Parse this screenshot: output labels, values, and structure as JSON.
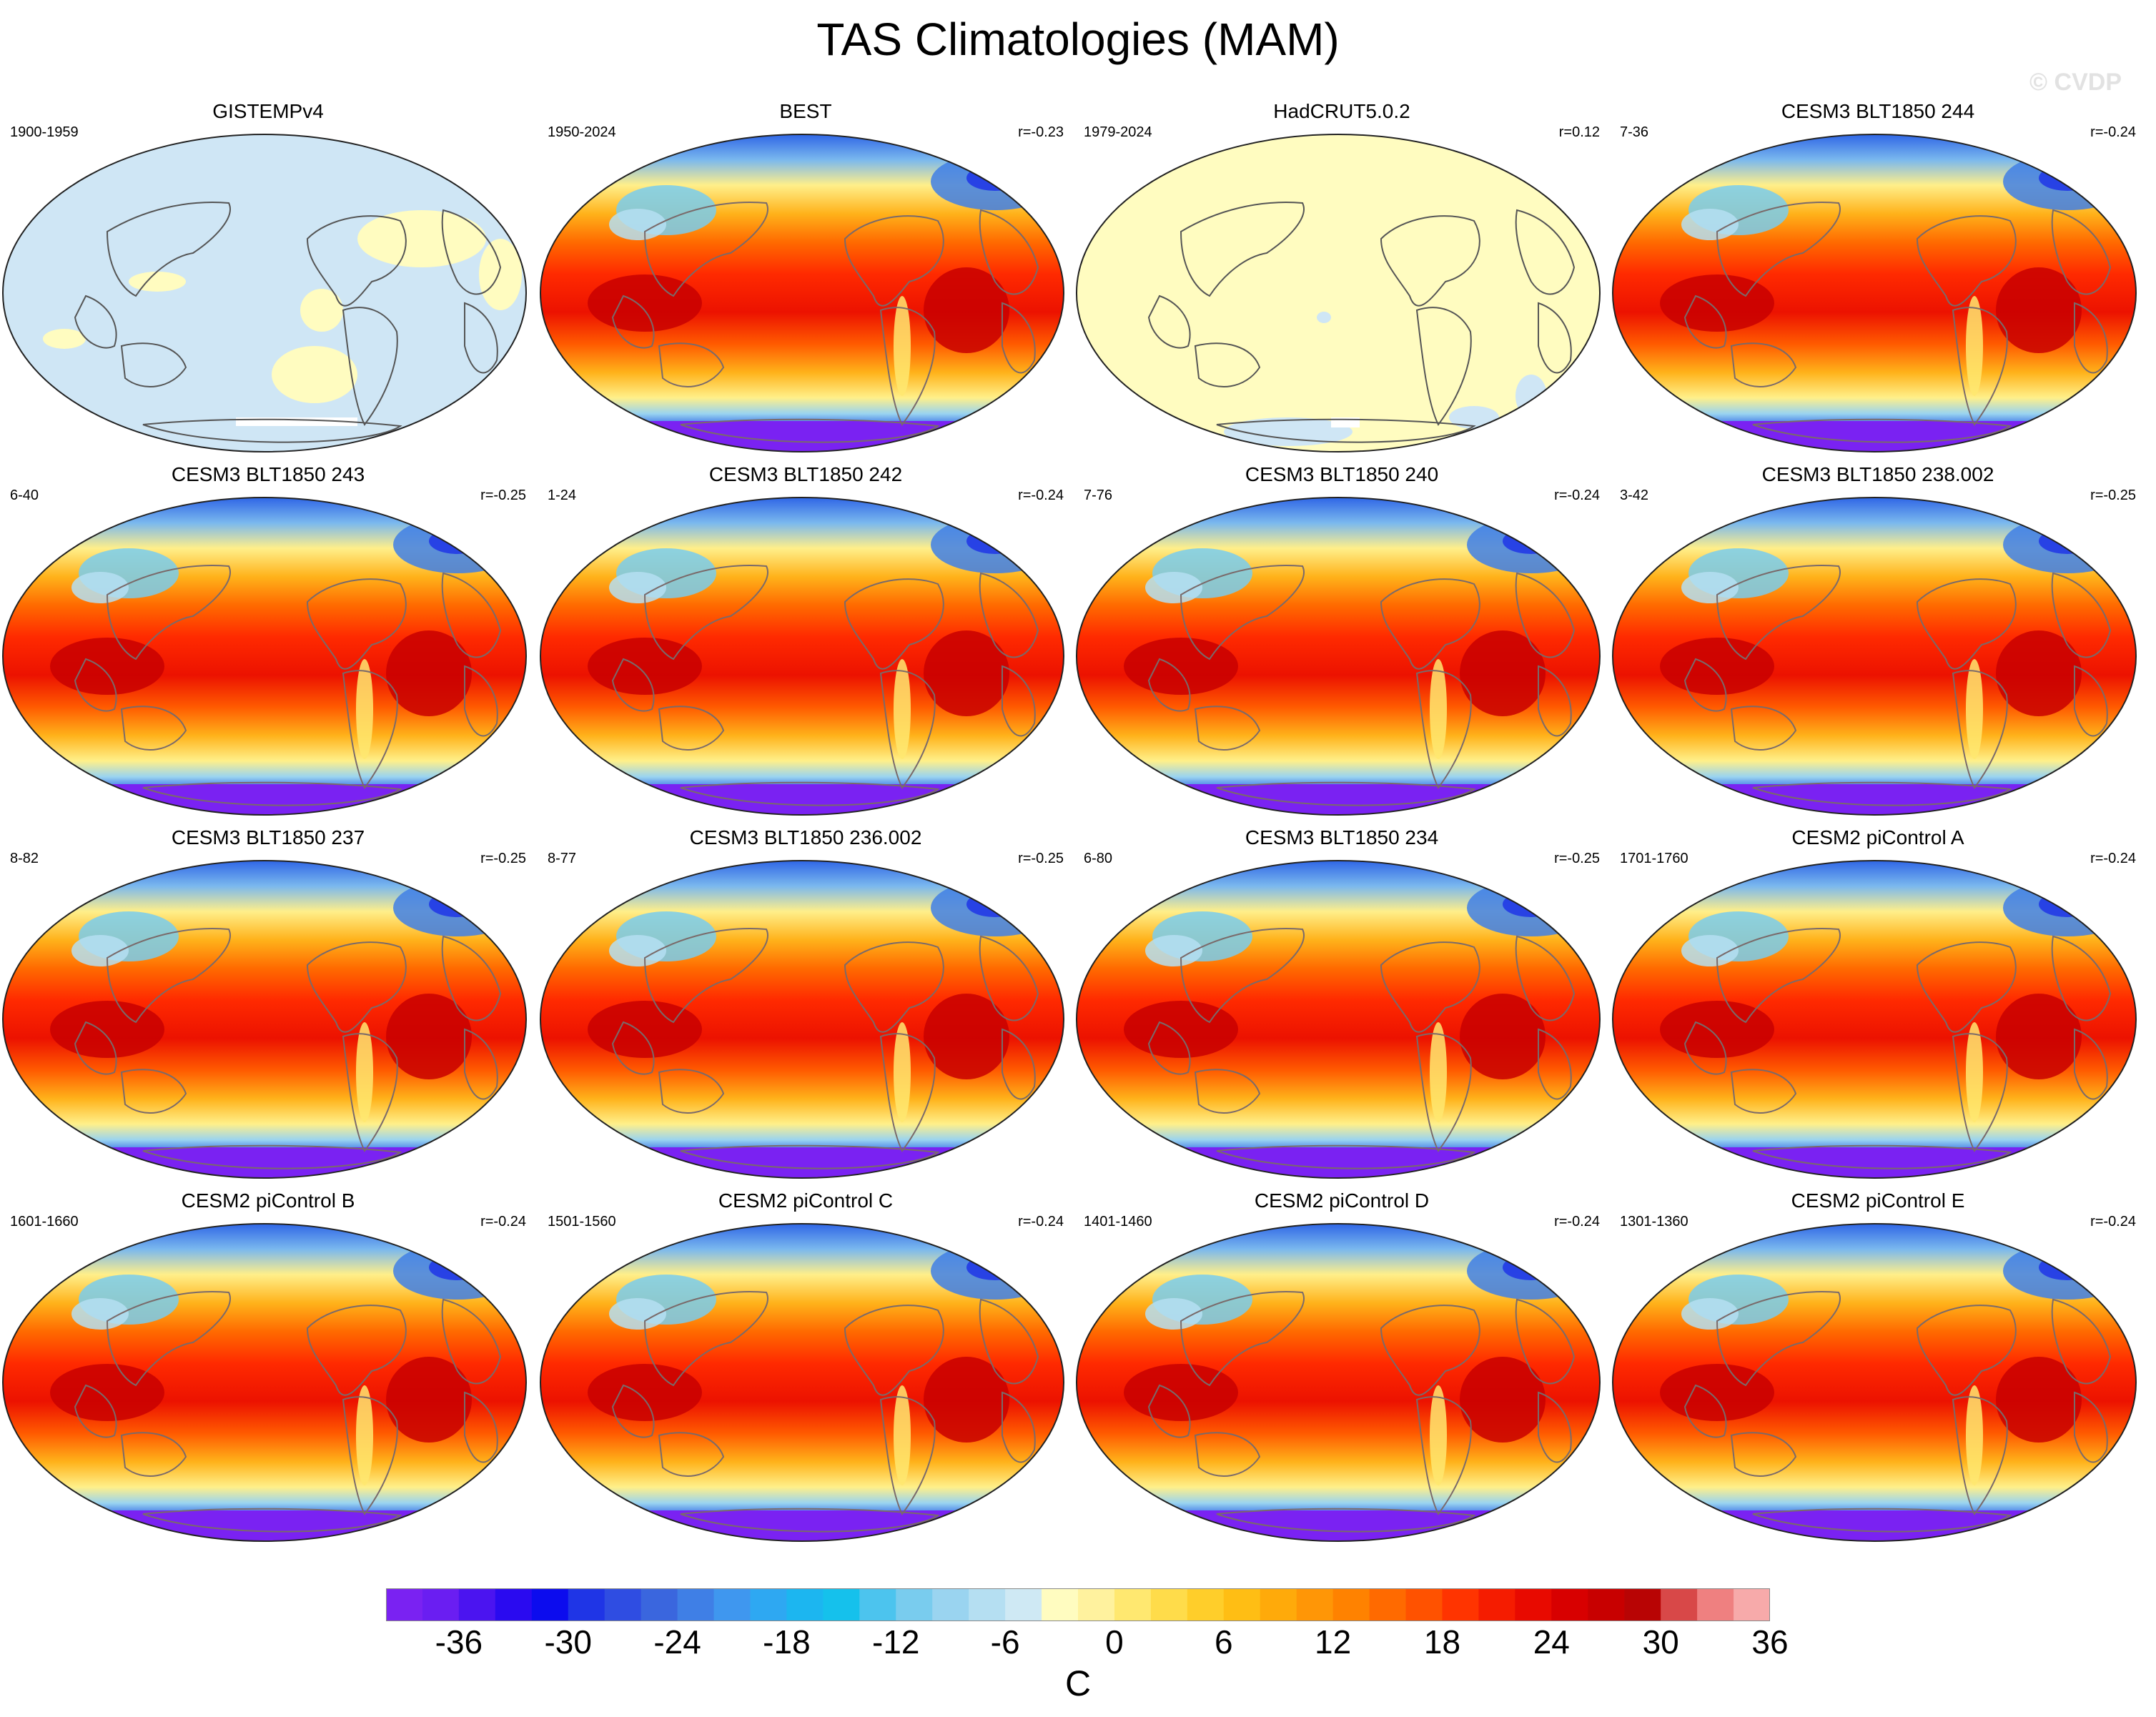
{
  "title": "TAS Climatologies (MAM)",
  "watermark": "© CVDP",
  "panels": [
    {
      "name": "GISTEMPv4",
      "period": "1900-1959",
      "corr": "",
      "style": "light_blue"
    },
    {
      "name": "BEST",
      "period": "1950-2024",
      "corr": "r=-0.23",
      "style": "model"
    },
    {
      "name": "HadCRUT5.0.2",
      "period": "1979-2024",
      "corr": "r=0.12",
      "style": "light_yellow"
    },
    {
      "name": "CESM3 BLT1850 244",
      "period": "7-36",
      "corr": "r=-0.24",
      "style": "model"
    },
    {
      "name": "CESM3 BLT1850 243",
      "period": "6-40",
      "corr": "r=-0.25",
      "style": "model"
    },
    {
      "name": "CESM3 BLT1850 242",
      "period": "1-24",
      "corr": "r=-0.24",
      "style": "model"
    },
    {
      "name": "CESM3 BLT1850 240",
      "period": "7-76",
      "corr": "r=-0.24",
      "style": "model"
    },
    {
      "name": "CESM3 BLT1850 238.002",
      "period": "3-42",
      "corr": "r=-0.25",
      "style": "model"
    },
    {
      "name": "CESM3 BLT1850 237",
      "period": "8-82",
      "corr": "r=-0.25",
      "style": "model"
    },
    {
      "name": "CESM3 BLT1850 236.002",
      "period": "8-77",
      "corr": "r=-0.25",
      "style": "model"
    },
    {
      "name": "CESM3 BLT1850 234",
      "period": "6-80",
      "corr": "r=-0.25",
      "style": "model"
    },
    {
      "name": "CESM2 piControl A",
      "period": "1701-1760",
      "corr": "r=-0.24",
      "style": "model"
    },
    {
      "name": "CESM2 piControl B",
      "period": "1601-1660",
      "corr": "r=-0.24",
      "style": "model"
    },
    {
      "name": "CESM2 piControl C",
      "period": "1501-1560",
      "corr": "r=-0.24",
      "style": "model"
    },
    {
      "name": "CESM2 piControl D",
      "period": "1401-1460",
      "corr": "r=-0.24",
      "style": "model"
    },
    {
      "name": "CESM2 piControl E",
      "period": "1301-1360",
      "corr": "r=-0.24",
      "style": "model"
    }
  ],
  "colorbar": {
    "units": "C",
    "tick_labels": [
      "-36",
      "-30",
      "-24",
      "-18",
      "-12",
      "-6",
      "0",
      "6",
      "12",
      "18",
      "24",
      "30",
      "36"
    ],
    "colors": [
      "#7a22f2",
      "#6a1ef2",
      "#4b14f0",
      "#2a0af0",
      "#0c0cee",
      "#1f35e6",
      "#2f4de2",
      "#3a66de",
      "#3f7fe6",
      "#3f97ef",
      "#2ea8f2",
      "#1cb6f0",
      "#15c1ec",
      "#4cc4ee",
      "#79ccee",
      "#9ad4f0",
      "#b5dff2",
      "#cfe9f4",
      "#fffcc0",
      "#fff29e",
      "#ffe870",
      "#ffdc4a",
      "#ffce2a",
      "#ffbe14",
      "#ffaa0a",
      "#ff9606",
      "#ff8200",
      "#ff6a00",
      "#ff5200",
      "#ff3400",
      "#f51c00",
      "#e80a00",
      "#d80000",
      "#c80000",
      "#b80404",
      "#d84848",
      "#ef8080",
      "#f7aaaa"
    ]
  }
}
